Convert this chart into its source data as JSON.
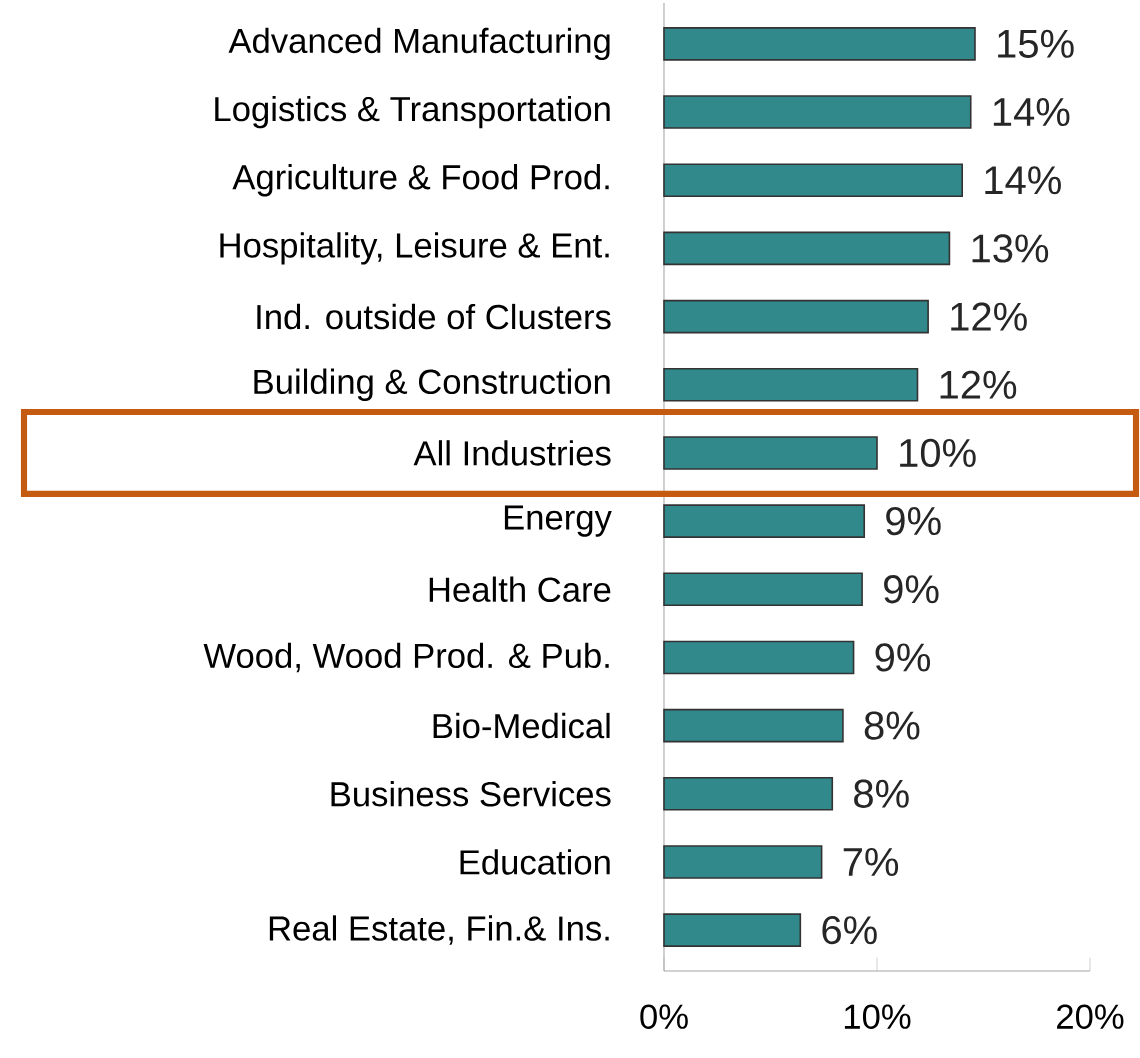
{
  "chart_data": {
    "type": "bar",
    "orientation": "horizontal",
    "categories": [
      "Advanced Manufacturing",
      "Logistics & Transportation",
      "Agriculture & Food Prod.",
      "Hospitality, Leisure & Ent.",
      "Ind. outside of Clusters",
      "Building & Construction",
      "All Industries",
      "Energy",
      "Health Care",
      "Wood, Wood Prod. & Pub.",
      "Bio-Medical",
      "Business Services",
      "Education",
      "Real Estate, Fin.& Ins."
    ],
    "values": [
      14.6,
      14.4,
      14.0,
      13.4,
      12.4,
      11.9,
      10.0,
      9.4,
      9.3,
      8.9,
      8.4,
      7.9,
      7.4,
      6.4
    ],
    "value_labels": [
      "15%",
      "14%",
      "14%",
      "13%",
      "12%",
      "12%",
      "10%",
      "9%",
      "9%",
      "9%",
      "8%",
      "8%",
      "7%",
      "6%"
    ],
    "color": "#31898c",
    "xlim": [
      0,
      20
    ],
    "xticks": [
      {
        "value": 0,
        "label": "0%"
      },
      {
        "value": 10,
        "label": "10%"
      },
      {
        "value": 20,
        "label": "20%"
      }
    ],
    "grid": false
  }
}
